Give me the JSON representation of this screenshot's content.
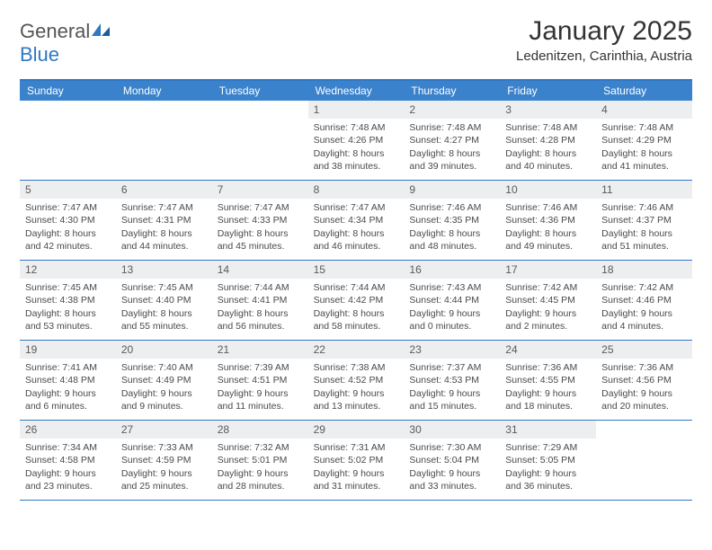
{
  "brand": {
    "part1": "General",
    "part2": "Blue"
  },
  "title": "January 2025",
  "location": "Ledenitzen, Carinthia, Austria",
  "colors": {
    "header_bg": "#3a82cc",
    "header_text": "#ffffff",
    "border": "#2f78c4",
    "daynum_bg": "#eceef0",
    "text": "#4a4a4a"
  },
  "weekdays": [
    "Sunday",
    "Monday",
    "Tuesday",
    "Wednesday",
    "Thursday",
    "Friday",
    "Saturday"
  ],
  "weeks": [
    [
      null,
      null,
      null,
      {
        "num": "1",
        "sunrise": "Sunrise: 7:48 AM",
        "sunset": "Sunset: 4:26 PM",
        "daylight": "Daylight: 8 hours and 38 minutes."
      },
      {
        "num": "2",
        "sunrise": "Sunrise: 7:48 AM",
        "sunset": "Sunset: 4:27 PM",
        "daylight": "Daylight: 8 hours and 39 minutes."
      },
      {
        "num": "3",
        "sunrise": "Sunrise: 7:48 AM",
        "sunset": "Sunset: 4:28 PM",
        "daylight": "Daylight: 8 hours and 40 minutes."
      },
      {
        "num": "4",
        "sunrise": "Sunrise: 7:48 AM",
        "sunset": "Sunset: 4:29 PM",
        "daylight": "Daylight: 8 hours and 41 minutes."
      }
    ],
    [
      {
        "num": "5",
        "sunrise": "Sunrise: 7:47 AM",
        "sunset": "Sunset: 4:30 PM",
        "daylight": "Daylight: 8 hours and 42 minutes."
      },
      {
        "num": "6",
        "sunrise": "Sunrise: 7:47 AM",
        "sunset": "Sunset: 4:31 PM",
        "daylight": "Daylight: 8 hours and 44 minutes."
      },
      {
        "num": "7",
        "sunrise": "Sunrise: 7:47 AM",
        "sunset": "Sunset: 4:33 PM",
        "daylight": "Daylight: 8 hours and 45 minutes."
      },
      {
        "num": "8",
        "sunrise": "Sunrise: 7:47 AM",
        "sunset": "Sunset: 4:34 PM",
        "daylight": "Daylight: 8 hours and 46 minutes."
      },
      {
        "num": "9",
        "sunrise": "Sunrise: 7:46 AM",
        "sunset": "Sunset: 4:35 PM",
        "daylight": "Daylight: 8 hours and 48 minutes."
      },
      {
        "num": "10",
        "sunrise": "Sunrise: 7:46 AM",
        "sunset": "Sunset: 4:36 PM",
        "daylight": "Daylight: 8 hours and 49 minutes."
      },
      {
        "num": "11",
        "sunrise": "Sunrise: 7:46 AM",
        "sunset": "Sunset: 4:37 PM",
        "daylight": "Daylight: 8 hours and 51 minutes."
      }
    ],
    [
      {
        "num": "12",
        "sunrise": "Sunrise: 7:45 AM",
        "sunset": "Sunset: 4:38 PM",
        "daylight": "Daylight: 8 hours and 53 minutes."
      },
      {
        "num": "13",
        "sunrise": "Sunrise: 7:45 AM",
        "sunset": "Sunset: 4:40 PM",
        "daylight": "Daylight: 8 hours and 55 minutes."
      },
      {
        "num": "14",
        "sunrise": "Sunrise: 7:44 AM",
        "sunset": "Sunset: 4:41 PM",
        "daylight": "Daylight: 8 hours and 56 minutes."
      },
      {
        "num": "15",
        "sunrise": "Sunrise: 7:44 AM",
        "sunset": "Sunset: 4:42 PM",
        "daylight": "Daylight: 8 hours and 58 minutes."
      },
      {
        "num": "16",
        "sunrise": "Sunrise: 7:43 AM",
        "sunset": "Sunset: 4:44 PM",
        "daylight": "Daylight: 9 hours and 0 minutes."
      },
      {
        "num": "17",
        "sunrise": "Sunrise: 7:42 AM",
        "sunset": "Sunset: 4:45 PM",
        "daylight": "Daylight: 9 hours and 2 minutes."
      },
      {
        "num": "18",
        "sunrise": "Sunrise: 7:42 AM",
        "sunset": "Sunset: 4:46 PM",
        "daylight": "Daylight: 9 hours and 4 minutes."
      }
    ],
    [
      {
        "num": "19",
        "sunrise": "Sunrise: 7:41 AM",
        "sunset": "Sunset: 4:48 PM",
        "daylight": "Daylight: 9 hours and 6 minutes."
      },
      {
        "num": "20",
        "sunrise": "Sunrise: 7:40 AM",
        "sunset": "Sunset: 4:49 PM",
        "daylight": "Daylight: 9 hours and 9 minutes."
      },
      {
        "num": "21",
        "sunrise": "Sunrise: 7:39 AM",
        "sunset": "Sunset: 4:51 PM",
        "daylight": "Daylight: 9 hours and 11 minutes."
      },
      {
        "num": "22",
        "sunrise": "Sunrise: 7:38 AM",
        "sunset": "Sunset: 4:52 PM",
        "daylight": "Daylight: 9 hours and 13 minutes."
      },
      {
        "num": "23",
        "sunrise": "Sunrise: 7:37 AM",
        "sunset": "Sunset: 4:53 PM",
        "daylight": "Daylight: 9 hours and 15 minutes."
      },
      {
        "num": "24",
        "sunrise": "Sunrise: 7:36 AM",
        "sunset": "Sunset: 4:55 PM",
        "daylight": "Daylight: 9 hours and 18 minutes."
      },
      {
        "num": "25",
        "sunrise": "Sunrise: 7:36 AM",
        "sunset": "Sunset: 4:56 PM",
        "daylight": "Daylight: 9 hours and 20 minutes."
      }
    ],
    [
      {
        "num": "26",
        "sunrise": "Sunrise: 7:34 AM",
        "sunset": "Sunset: 4:58 PM",
        "daylight": "Daylight: 9 hours and 23 minutes."
      },
      {
        "num": "27",
        "sunrise": "Sunrise: 7:33 AM",
        "sunset": "Sunset: 4:59 PM",
        "daylight": "Daylight: 9 hours and 25 minutes."
      },
      {
        "num": "28",
        "sunrise": "Sunrise: 7:32 AM",
        "sunset": "Sunset: 5:01 PM",
        "daylight": "Daylight: 9 hours and 28 minutes."
      },
      {
        "num": "29",
        "sunrise": "Sunrise: 7:31 AM",
        "sunset": "Sunset: 5:02 PM",
        "daylight": "Daylight: 9 hours and 31 minutes."
      },
      {
        "num": "30",
        "sunrise": "Sunrise: 7:30 AM",
        "sunset": "Sunset: 5:04 PM",
        "daylight": "Daylight: 9 hours and 33 minutes."
      },
      {
        "num": "31",
        "sunrise": "Sunrise: 7:29 AM",
        "sunset": "Sunset: 5:05 PM",
        "daylight": "Daylight: 9 hours and 36 minutes."
      },
      null
    ]
  ]
}
